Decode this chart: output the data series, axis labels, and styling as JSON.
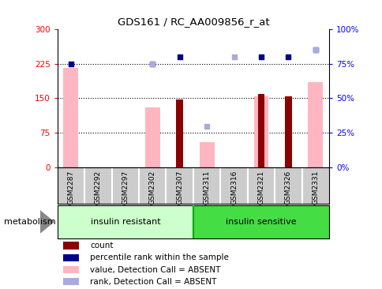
{
  "title": "GDS161 / RC_AA009856_r_at",
  "samples": [
    "GSM2287",
    "GSM2292",
    "GSM2297",
    "GSM2302",
    "GSM2307",
    "GSM2311",
    "GSM2316",
    "GSM2321",
    "GSM2326",
    "GSM2331"
  ],
  "pink_bar_values": [
    215,
    0,
    0,
    130,
    0,
    55,
    0,
    155,
    0,
    185
  ],
  "dark_red_bar_values": [
    0,
    0,
    0,
    0,
    148,
    0,
    0,
    160,
    155,
    0
  ],
  "blue_square_values": [
    75,
    null,
    null,
    75,
    80,
    null,
    null,
    80,
    80,
    85
  ],
  "light_blue_square_values": [
    null,
    null,
    null,
    75,
    null,
    30,
    80,
    null,
    null,
    85
  ],
  "ylim_left": [
    0,
    300
  ],
  "ylim_right": [
    0,
    100
  ],
  "yticks_left": [
    0,
    75,
    150,
    225,
    300
  ],
  "yticks_right": [
    0,
    25,
    50,
    75,
    100
  ],
  "ytick_labels_left": [
    "0",
    "75",
    "150",
    "225",
    "300"
  ],
  "ytick_labels_right": [
    "0%",
    "25%",
    "50%",
    "75%",
    "100%"
  ],
  "hlines": [
    75,
    150,
    225
  ],
  "group1_label": "insulin resistant",
  "group2_label": "insulin sensitive",
  "group1_indices": [
    0,
    1,
    2,
    3,
    4
  ],
  "group2_indices": [
    5,
    6,
    7,
    8,
    9
  ],
  "pathway_label": "metabolism",
  "legend_items": [
    {
      "label": "count",
      "color": "#8B0000"
    },
    {
      "label": "percentile rank within the sample",
      "color": "#00008B"
    },
    {
      "label": "value, Detection Call = ABSENT",
      "color": "#FFB6C1"
    },
    {
      "label": "rank, Detection Call = ABSENT",
      "color": "#AAAADD"
    }
  ],
  "pink_color": "#FFB6C1",
  "dark_red_color": "#8B0000",
  "blue_color": "#00008B",
  "light_blue_color": "#AAAADD",
  "group_bg_light_green": "#CCFFCC",
  "group_bg_green": "#00CC00",
  "tick_area_color": "#CCCCCC",
  "bar_width": 0.55
}
